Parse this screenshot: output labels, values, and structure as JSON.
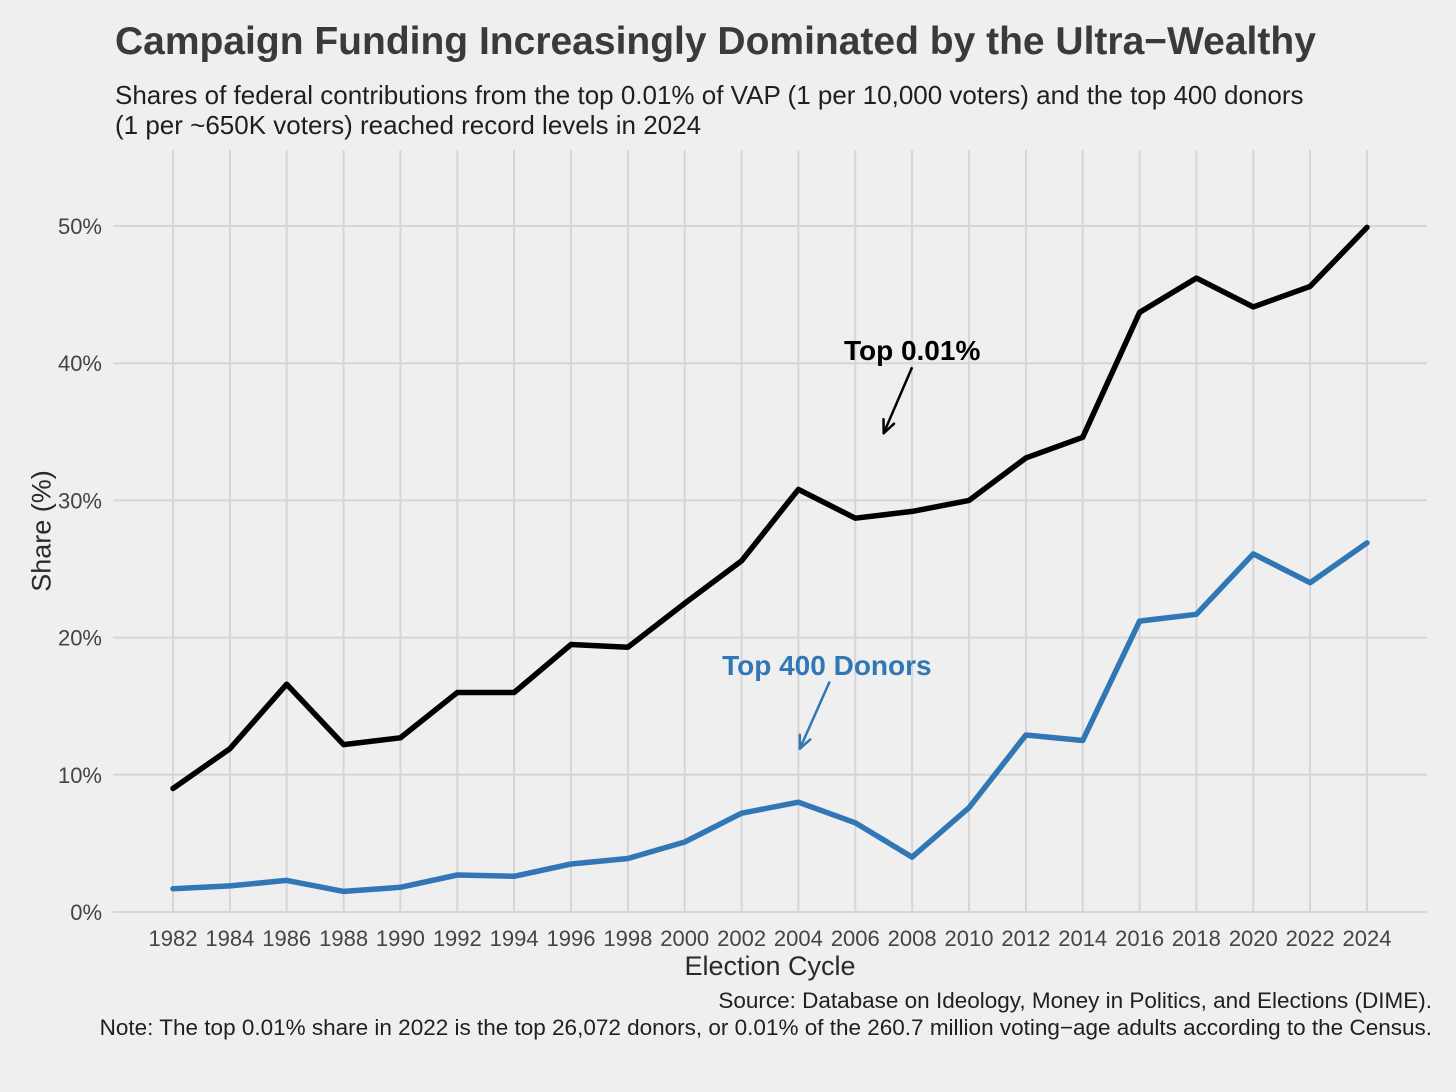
{
  "chart_data": {
    "type": "line",
    "title": "Campaign Funding Increasingly Dominated by the Ultra−Wealthy",
    "subtitle_lines": [
      "Shares of federal contributions from the top 0.01% of VAP (1 per 10,000 voters) and the top 400 donors",
      "(1 per ~650K voters) reached record levels in 2024"
    ],
    "xlabel": "Election Cycle",
    "ylabel": "Share (%)",
    "source": "Source: Database on Ideology, Money in Politics, and Elections (DIME).",
    "note": "Note: The top 0.01% share in 2022 is the top 26,072 donors, or 0.01% of the 260.7 million voting−age adults according to the Census.",
    "x": [
      1982,
      1984,
      1986,
      1988,
      1990,
      1992,
      1994,
      1996,
      1998,
      2000,
      2002,
      2004,
      2006,
      2008,
      2010,
      2012,
      2014,
      2016,
      2018,
      2020,
      2022,
      2024
    ],
    "ylim": [
      0,
      50
    ],
    "yticks": [
      {
        "value": 0,
        "label": "0%"
      },
      {
        "value": 10,
        "label": "10%"
      },
      {
        "value": 20,
        "label": "20%"
      },
      {
        "value": 30,
        "label": "30%"
      },
      {
        "value": 40,
        "label": "40%"
      },
      {
        "value": 50,
        "label": "50%"
      }
    ],
    "grid": true,
    "legend_position": "inline-annotations",
    "series": [
      {
        "name": "Top 0.01%",
        "color": "#000000",
        "values": [
          9.0,
          11.9,
          16.6,
          12.2,
          12.7,
          16.0,
          16.0,
          19.5,
          19.3,
          22.5,
          25.6,
          30.8,
          28.7,
          29.2,
          30.0,
          33.1,
          34.6,
          43.7,
          46.2,
          44.1,
          45.6,
          49.9
        ]
      },
      {
        "name": "Top 400 Donors",
        "color": "#3277b5",
        "values": [
          1.7,
          1.9,
          2.3,
          1.5,
          1.8,
          2.7,
          2.6,
          3.5,
          3.9,
          5.1,
          7.2,
          8.0,
          6.5,
          4.0,
          7.6,
          12.9,
          12.5,
          21.2,
          21.7,
          26.1,
          24.0,
          26.9
        ]
      }
    ],
    "annotations": [
      {
        "text": "Top 0.01%",
        "color": "#000000",
        "text_x": 2008.0,
        "text_y": 40.9,
        "arrow": {
          "x1": 2008.0,
          "y1": 39.7,
          "x2": 2007.0,
          "y2": 34.9
        }
      },
      {
        "text": "Top 400 Donors",
        "color": "#3277b5",
        "text_x": 2005.0,
        "text_y": 17.9,
        "arrow": {
          "x1": 2005.1,
          "y1": 16.8,
          "x2": 2004.05,
          "y2": 11.9
        }
      }
    ],
    "colors": {
      "background": "#efeff0",
      "grid": "#d6d6d8",
      "title": "#3a3a3a",
      "text": "#1f1f1f",
      "tick": "#444444"
    }
  }
}
